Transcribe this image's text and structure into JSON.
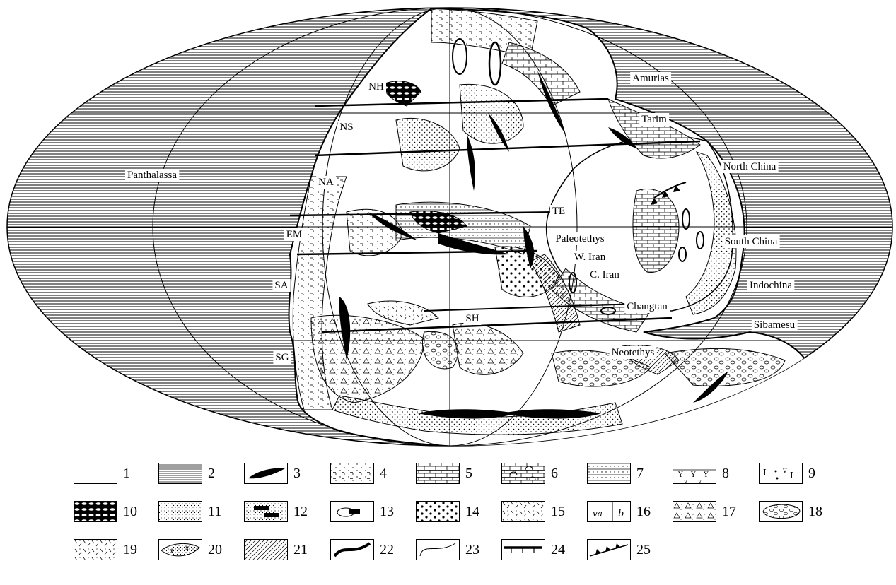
{
  "map": {
    "projection": "mollweide-like ellipse",
    "regions": [
      {
        "id": "panthalassa",
        "label": "Panthalassa"
      },
      {
        "id": "nh",
        "label": "NH"
      },
      {
        "id": "ns",
        "label": "NS"
      },
      {
        "id": "na",
        "label": "NA"
      },
      {
        "id": "em",
        "label": "EM"
      },
      {
        "id": "sa",
        "label": "SA"
      },
      {
        "id": "sg",
        "label": "SG"
      },
      {
        "id": "te",
        "label": "TE"
      },
      {
        "id": "sh",
        "label": "SH"
      },
      {
        "id": "amurias",
        "label": "Amurias"
      },
      {
        "id": "tarim",
        "label": "Tarim"
      },
      {
        "id": "north-china",
        "label": "North China"
      },
      {
        "id": "paleotethys",
        "label": "Paleotethys"
      },
      {
        "id": "w-iran",
        "label": "W. Iran"
      },
      {
        "id": "c-iran",
        "label": "C. Iran"
      },
      {
        "id": "south-china",
        "label": "South China"
      },
      {
        "id": "indochina",
        "label": "Indochina"
      },
      {
        "id": "changtan",
        "label": "Changtan"
      },
      {
        "id": "sibamesu",
        "label": "Sibamesu"
      },
      {
        "id": "neotethys",
        "label": "Neotethys"
      }
    ]
  },
  "legend": {
    "rows": [
      [
        {
          "num": "1",
          "pattern": "blank"
        },
        {
          "num": "2",
          "pattern": "horizontal-lines"
        },
        {
          "num": "3",
          "pattern": "black-lens"
        },
        {
          "num": "4",
          "pattern": "dots-dashes"
        },
        {
          "num": "5",
          "pattern": "brick"
        },
        {
          "num": "6",
          "pattern": "brick-arcs"
        },
        {
          "num": "7",
          "pattern": "lines-dots"
        },
        {
          "num": "8",
          "pattern": "volcanic-y"
        },
        {
          "num": "9",
          "pattern": "mixed-symbols"
        }
      ],
      [
        {
          "num": "10",
          "pattern": "black-crosshatch"
        },
        {
          "num": "11",
          "pattern": "fine-dots"
        },
        {
          "num": "12",
          "pattern": "dots-black-bars"
        },
        {
          "num": "13",
          "pattern": "lens-bar"
        },
        {
          "num": "14",
          "pattern": "coarse-dots"
        },
        {
          "num": "15",
          "pattern": "dashes-dots"
        },
        {
          "num": "16",
          "pattern": "va-b-symbols"
        },
        {
          "num": "17",
          "pattern": "triangles"
        },
        {
          "num": "18",
          "pattern": "ovals"
        }
      ],
      [
        {
          "num": "19",
          "pattern": "short-strokes"
        },
        {
          "num": "20",
          "pattern": "dotted-lens"
        },
        {
          "num": "21",
          "pattern": "diagonal-lines"
        },
        {
          "num": "22",
          "pattern": "thick-curve"
        },
        {
          "num": "23",
          "pattern": "thin-curve"
        },
        {
          "num": "24",
          "pattern": "ticked-line"
        },
        {
          "num": "25",
          "pattern": "triangle-line"
        }
      ]
    ]
  }
}
